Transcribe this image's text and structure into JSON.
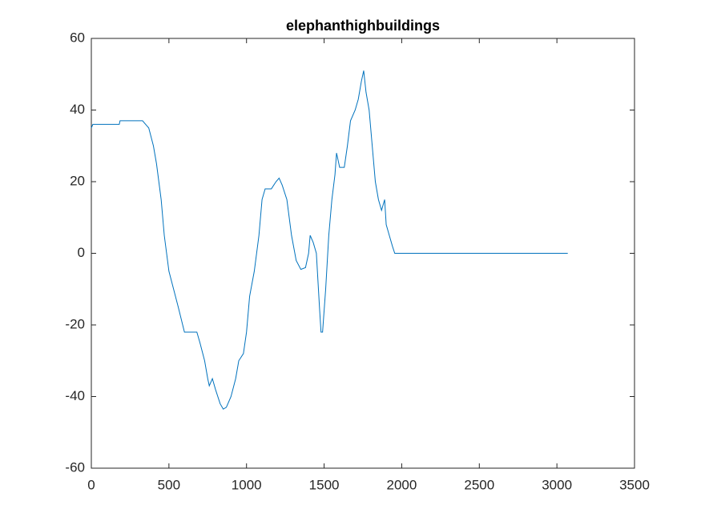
{
  "chart_data": {
    "type": "line",
    "title": "elephanthighbuildings",
    "color": "#0072bd",
    "x": [
      0,
      10,
      180,
      185,
      330,
      350,
      370,
      400,
      420,
      450,
      470,
      500,
      530,
      560,
      600,
      680,
      700,
      730,
      750,
      760,
      780,
      800,
      830,
      850,
      870,
      900,
      930,
      950,
      980,
      1000,
      1020,
      1050,
      1080,
      1100,
      1120,
      1160,
      1190,
      1210,
      1230,
      1260,
      1290,
      1320,
      1350,
      1380,
      1400,
      1410,
      1430,
      1450,
      1470,
      1480,
      1490,
      1510,
      1530,
      1550,
      1570,
      1580,
      1600,
      1630,
      1650,
      1670,
      1700,
      1720,
      1740,
      1755,
      1770,
      1790,
      1810,
      1830,
      1850,
      1870,
      1890,
      1900,
      1920,
      1940,
      1955,
      3070
    ],
    "values": [
      35,
      36,
      36,
      37,
      37,
      36,
      35,
      30,
      25,
      15,
      5,
      -5,
      -10,
      -15,
      -22,
      -22,
      -25,
      -30,
      -35,
      -37,
      -35,
      -38,
      -42,
      -43.5,
      -43,
      -40,
      -35,
      -30,
      -28,
      -22,
      -12,
      -5,
      5,
      15,
      18,
      18,
      20,
      21,
      19,
      15,
      5,
      -2,
      -4.5,
      -4,
      0,
      5,
      3,
      0,
      -15,
      -22,
      -22,
      -10,
      5,
      15,
      22,
      28,
      24,
      24,
      30,
      37,
      40,
      43,
      48,
      51,
      45,
      40,
      30,
      20,
      15,
      12,
      15,
      8,
      5,
      2,
      0,
      0
    ],
    "xlim": [
      0,
      3500
    ],
    "xticks": [
      0,
      500,
      1000,
      1500,
      2000,
      2500,
      3000,
      3500
    ],
    "ylim": [
      -60,
      60
    ],
    "yticks": [
      -60,
      -40,
      -20,
      0,
      20,
      40,
      60
    ]
  }
}
